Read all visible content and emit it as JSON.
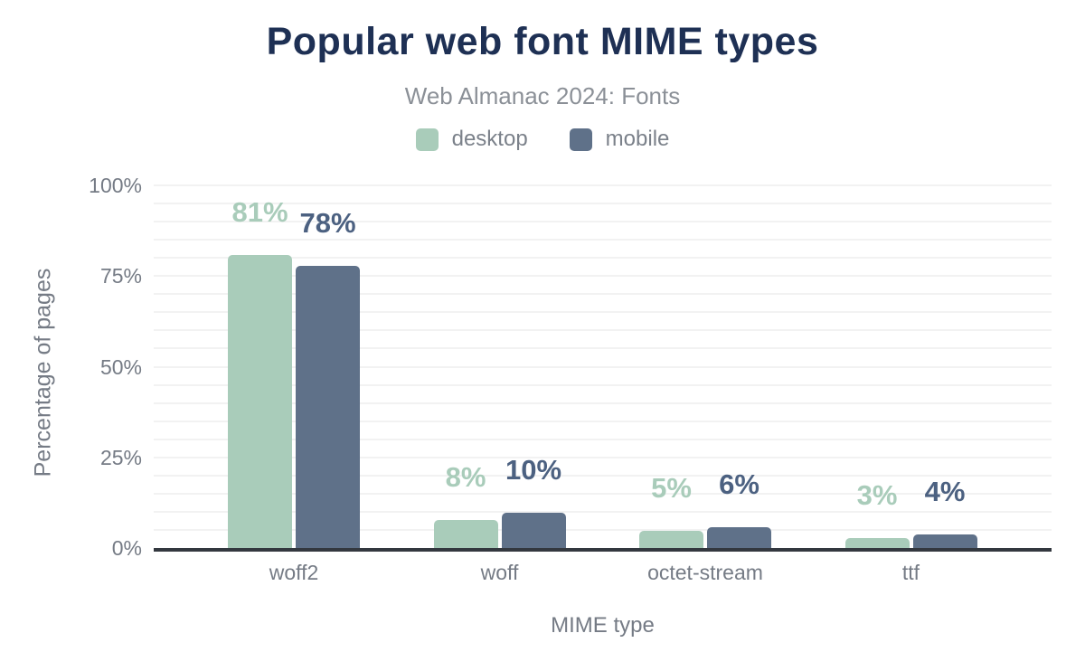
{
  "title": "Popular web font MIME types",
  "subtitle": "Web Almanac 2024: Fonts",
  "colors": {
    "title": "#1e3054",
    "subtitle_text": "#8b9097",
    "axis_text": "#757b85",
    "gridline": "#f2f2f2",
    "axis_line": "#33383f",
    "desktop": "#a9ccba",
    "mobile": "#5f7189",
    "desktop_label": "#a9ccba",
    "mobile_label": "#4c6181"
  },
  "chart_data": {
    "type": "bar",
    "categories": [
      "woff2",
      "woff",
      "octet-stream",
      "ttf"
    ],
    "series": [
      {
        "name": "desktop",
        "values": [
          81,
          8,
          5,
          3
        ],
        "color": "#a9ccba",
        "label_color": "#a9ccba"
      },
      {
        "name": "mobile",
        "values": [
          78,
          10,
          6,
          4
        ],
        "color": "#5f7189",
        "label_color": "#4c6181"
      }
    ],
    "data_label_format": "{v}%",
    "title": "Popular web font MIME types",
    "subtitle": "Web Almanac 2024: Fonts",
    "xlabel": "MIME type",
    "ylabel": "Percentage of pages",
    "y_ticks": [
      {
        "value": 0,
        "label": "0%"
      },
      {
        "value": 25,
        "label": "25%"
      },
      {
        "value": 50,
        "label": "50%"
      },
      {
        "value": 75,
        "label": "75%"
      },
      {
        "value": 100,
        "label": "100%"
      }
    ],
    "ylim": [
      0,
      100
    ],
    "grid": "horizontal, minor lines every 5%",
    "legend_position": "top"
  }
}
